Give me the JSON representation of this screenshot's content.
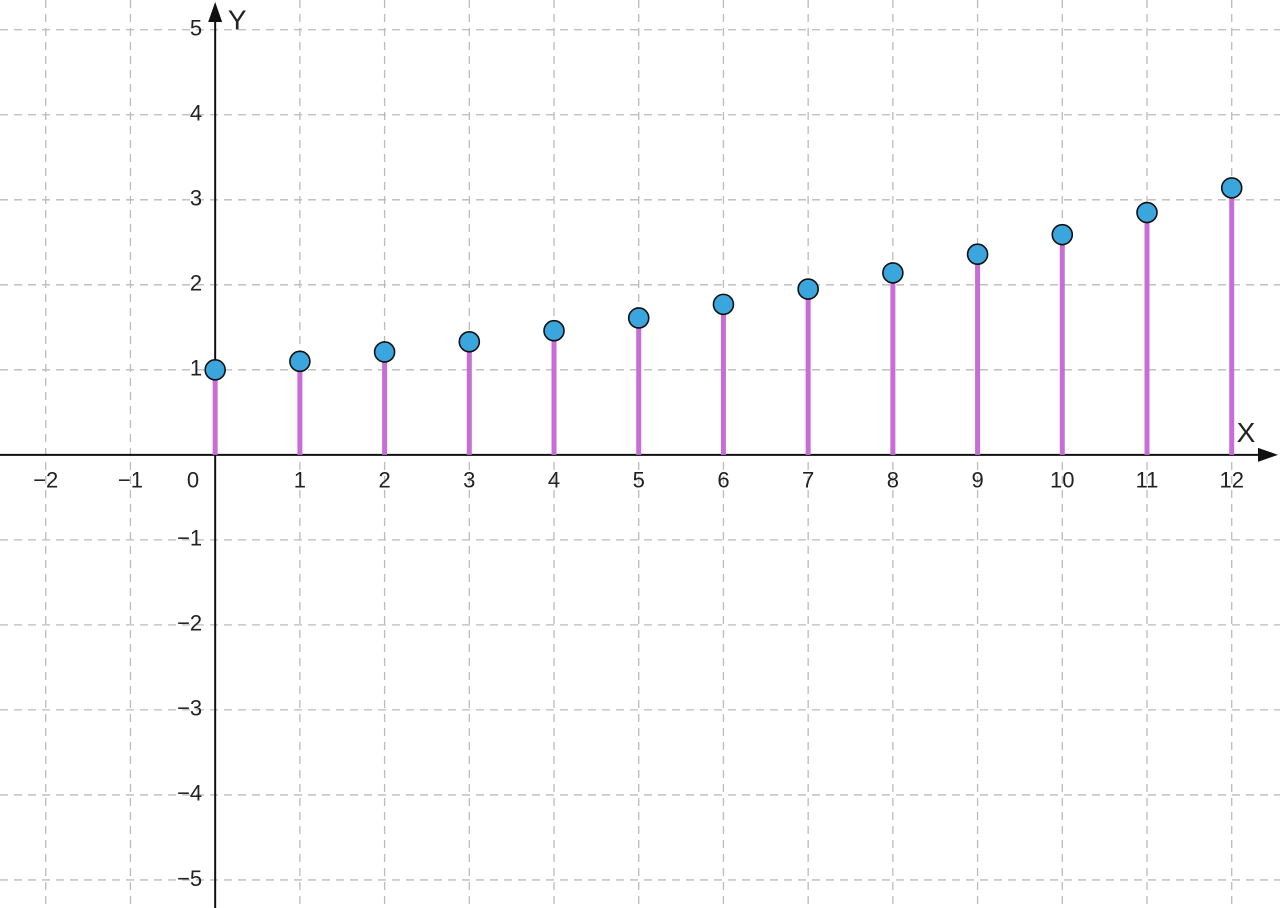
{
  "chart_data": {
    "type": "stem",
    "x": [
      0,
      1,
      2,
      3,
      4,
      5,
      6,
      7,
      8,
      9,
      10,
      11,
      12
    ],
    "values": [
      1,
      1.1,
      1.21,
      1.33,
      1.46,
      1.61,
      1.77,
      1.95,
      2.14,
      2.36,
      2.59,
      2.85,
      3.14
    ],
    "xlim": [
      -2.54,
      12.57
    ],
    "ylim": [
      -5.33,
      5.35
    ],
    "xticks": [
      {
        "value": -2,
        "label": "−2"
      },
      {
        "value": -1,
        "label": "−1"
      },
      1,
      2,
      3,
      4,
      5,
      6,
      7,
      8,
      9,
      10,
      11,
      12
    ],
    "yticks": [
      {
        "value": -5,
        "label": "−5"
      },
      {
        "value": -4,
        "label": "−4"
      },
      {
        "value": -3,
        "label": "−3"
      },
      {
        "value": -2,
        "label": "−2"
      },
      {
        "value": -1,
        "label": "−1"
      },
      1,
      2,
      3,
      4,
      5
    ],
    "origin_label": "0",
    "x_label": "X",
    "y_label": "Y",
    "stem_color": "#c86dd7",
    "marker_color": "#3aa6dd",
    "grid": true
  }
}
